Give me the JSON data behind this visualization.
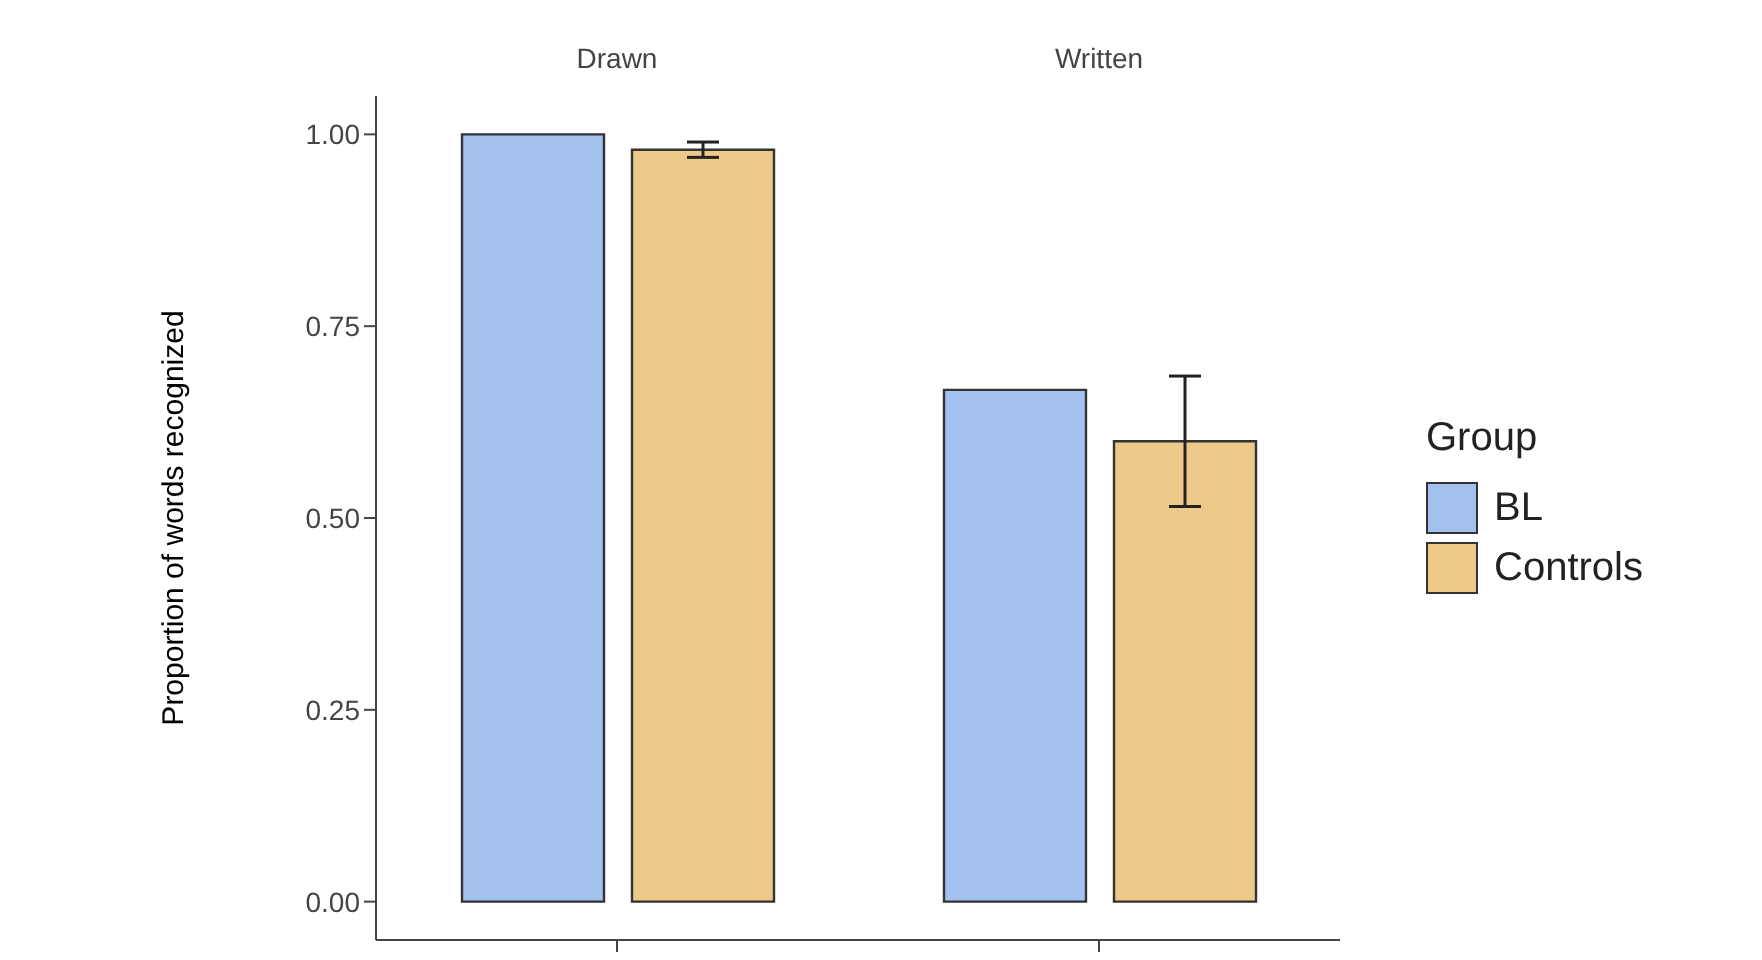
{
  "chart_data": {
    "type": "bar",
    "ylabel": "Proportion of words recognized",
    "legend_title": "Group",
    "categories": [
      "Drawn",
      "Written"
    ],
    "series": [
      {
        "name": "BL",
        "color": "#a4c2f0",
        "values": [
          1.0,
          0.667
        ],
        "errors": [
          null,
          null
        ]
      },
      {
        "name": "Controls",
        "color": "#edc98a",
        "values": [
          0.98,
          0.6
        ],
        "errors": [
          [
            0.97,
            0.99
          ],
          [
            0.515,
            0.685
          ]
        ]
      }
    ],
    "ylim": [
      -0.05,
      1.05
    ],
    "yticks": [
      {
        "value": 0,
        "label": "0.00"
      },
      {
        "value": 0.25,
        "label": "0.25"
      },
      {
        "value": 0.5,
        "label": "0.50"
      },
      {
        "value": 0.75,
        "label": "0.75"
      },
      {
        "value": 1,
        "label": "1.00"
      }
    ],
    "grid": false,
    "legend": "right"
  }
}
